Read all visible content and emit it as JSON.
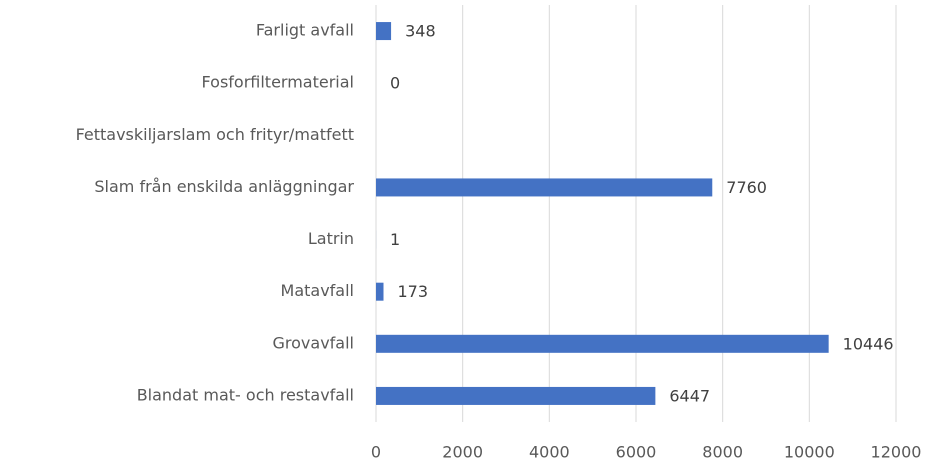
{
  "chart_data": {
    "type": "hbar",
    "categories": [
      "Farligt avfall",
      "Fosforfiltermaterial",
      "Fettavskiljarslam och frityr/matfett",
      "Slam från enskilda anläggningar",
      "Latrin",
      "Matavfall",
      "Grovavfall",
      "Blandat mat- och restavfall"
    ],
    "values": [
      348,
      0,
      null,
      7760,
      1,
      173,
      10446,
      6447
    ],
    "color": "#4472c4",
    "xlim": [
      0,
      12000
    ],
    "xticks": [
      0,
      2000,
      4000,
      6000,
      8000,
      10000,
      12000
    ],
    "grid": true
  }
}
